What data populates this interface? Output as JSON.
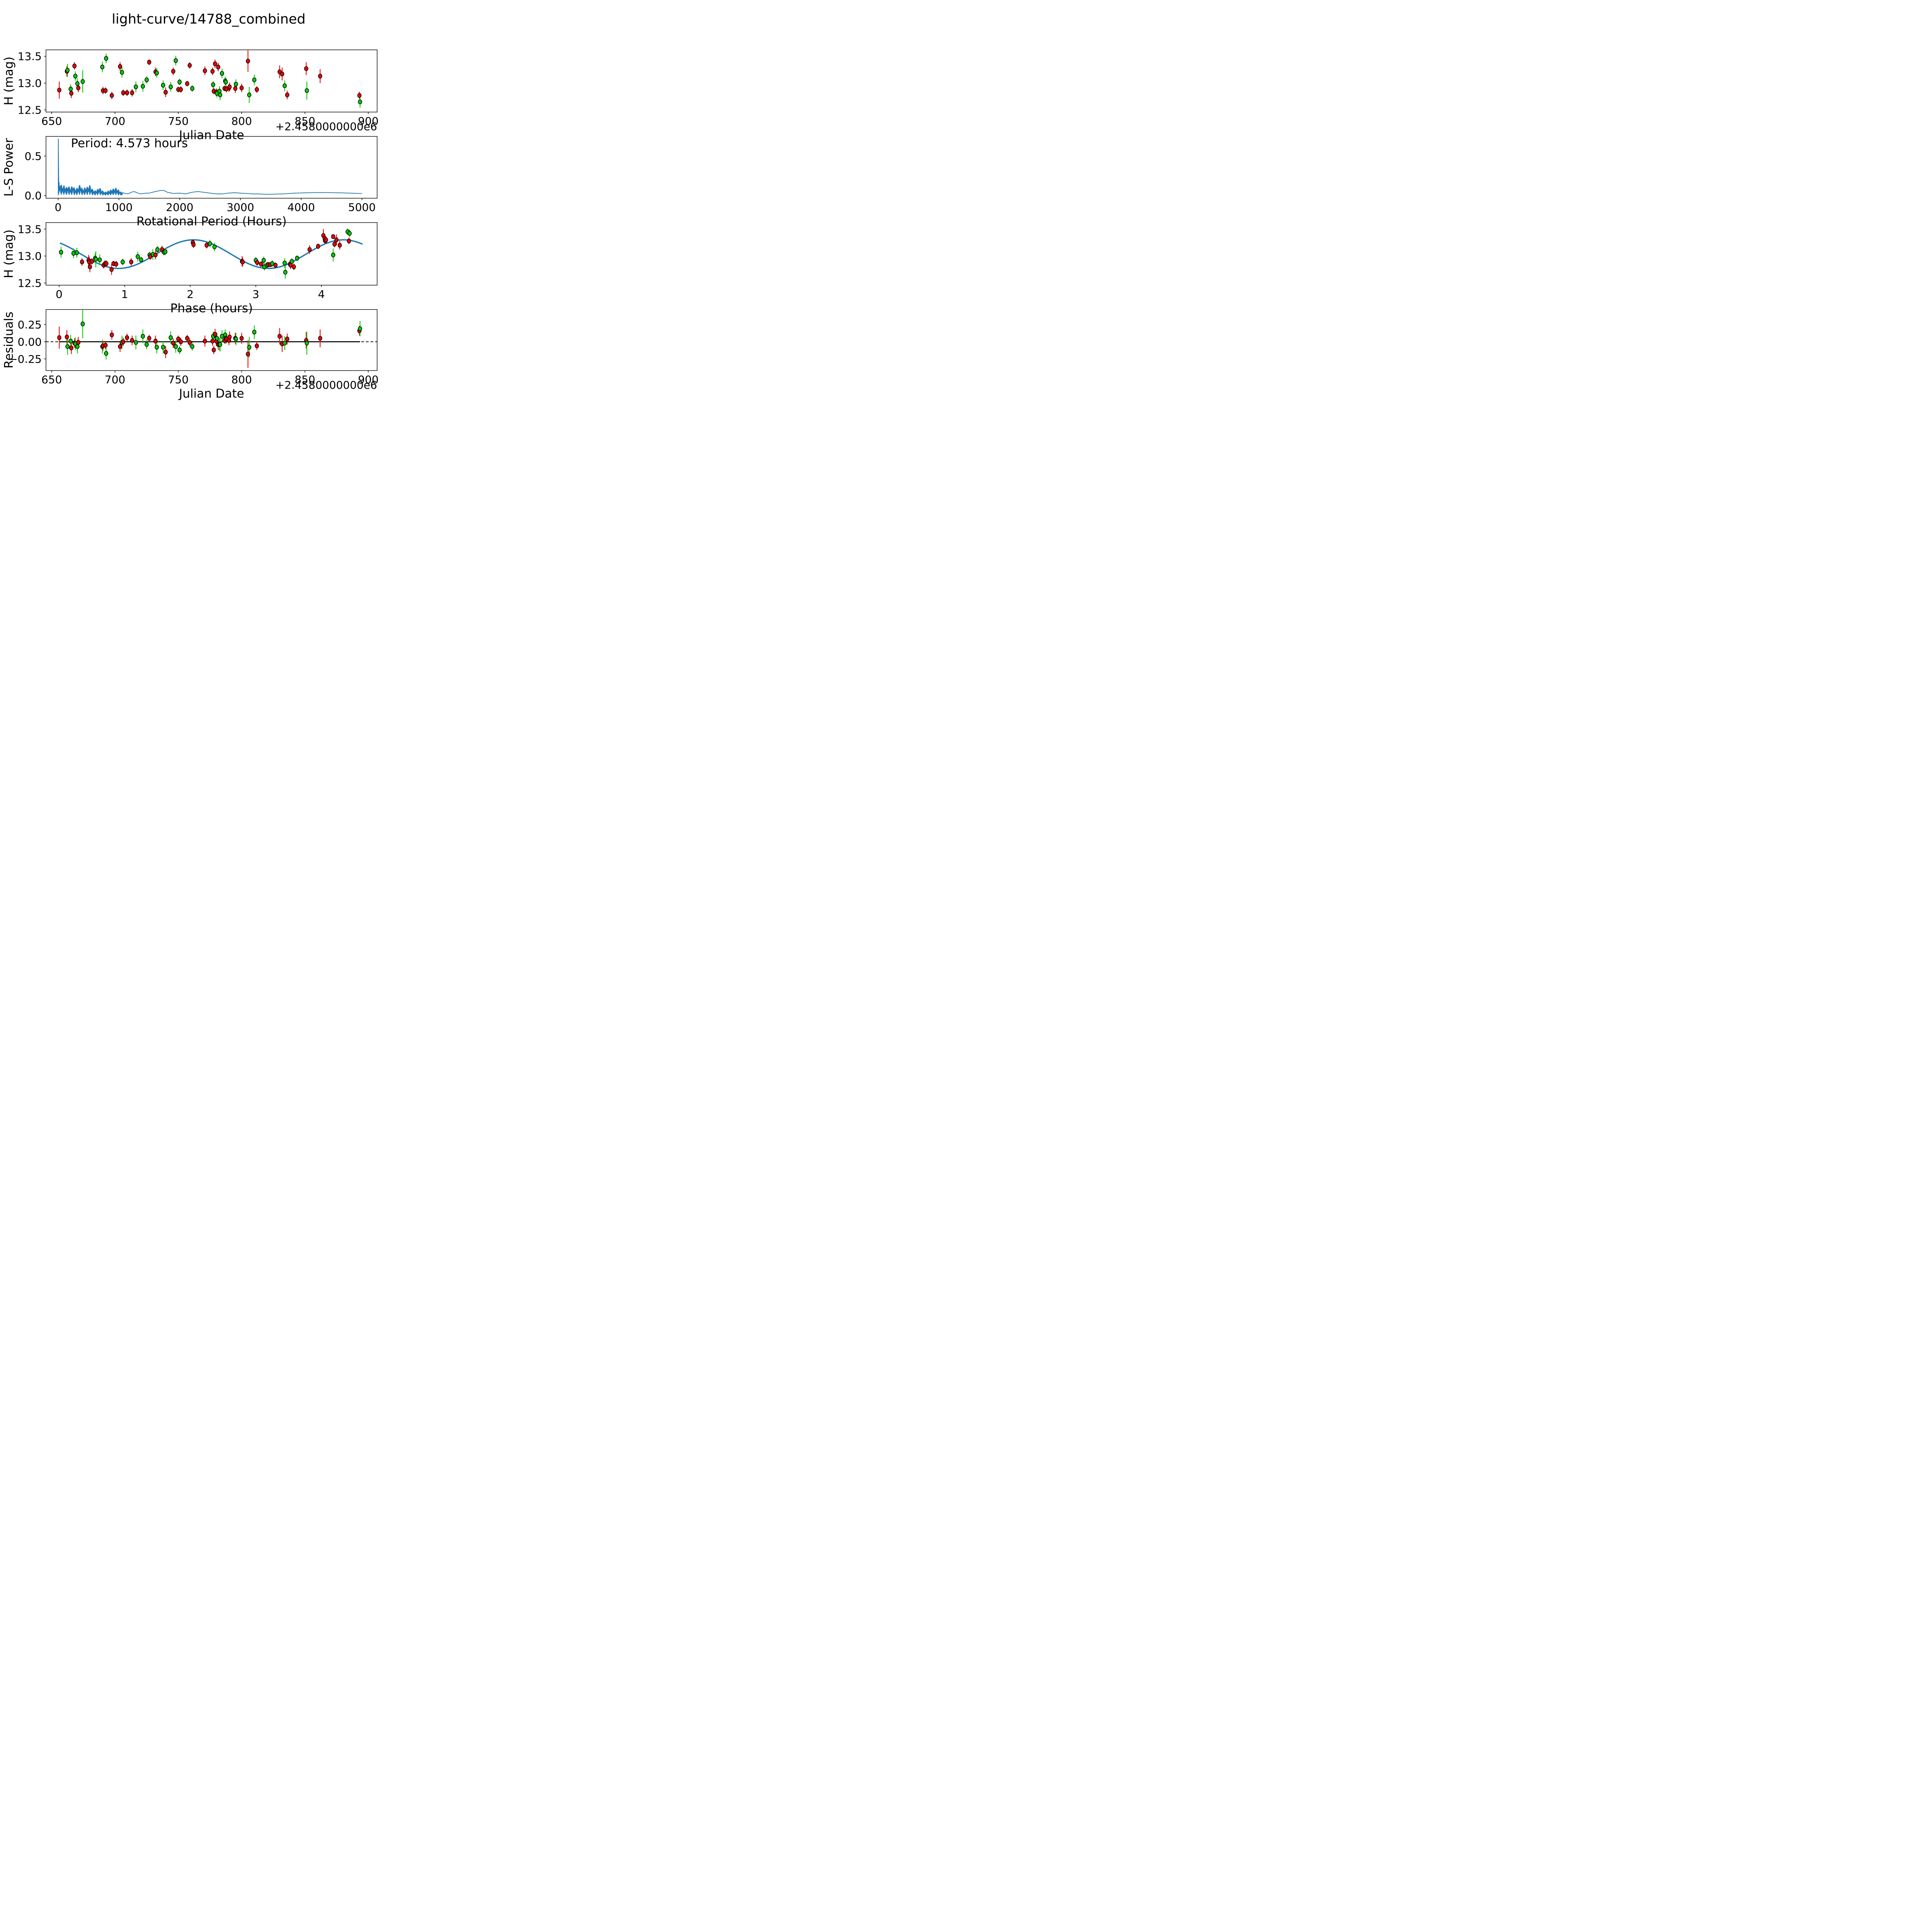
{
  "title": "light-curve/14788_combined",
  "colors": {
    "red": "#ee0000",
    "green": "#00cc00",
    "blue": "#1f77b4",
    "black": "#000000",
    "background": "#ffffff"
  },
  "chart_data": [
    {
      "type": "scatter",
      "name": "light-curve-vs-jd",
      "xlabel": "Julian Date",
      "ylabel": "H (mag)",
      "x_offset_text": "+2.4580000000e6",
      "xlim": [
        645.5,
        907
      ],
      "ylim": [
        12.46,
        13.62
      ],
      "xticks": [
        650,
        700,
        750,
        800,
        850,
        900
      ],
      "xtick_labels": [
        "650",
        "700",
        "750",
        "800",
        "850",
        "900"
      ],
      "yticks": [
        13.5,
        13.0,
        12.5
      ],
      "ytick_labels": [
        "13.5",
        "13.0",
        "12.5"
      ],
      "points_jd_mag_err_color_resid": [
        [
          656,
          12.87,
          0.16,
          "r",
          0.06
        ],
        [
          662,
          13.22,
          0.1,
          "r",
          0.07
        ],
        [
          662.5,
          13.24,
          0.12,
          "g",
          -0.07
        ],
        [
          665,
          12.89,
          0.09,
          "g",
          0.01
        ],
        [
          665.5,
          12.81,
          0.09,
          "r",
          -0.09
        ],
        [
          668,
          13.32,
          0.07,
          "r",
          -0.02
        ],
        [
          668.7,
          13.13,
          0.09,
          "g",
          -0.03
        ],
        [
          670.3,
          12.99,
          0.1,
          "g",
          -0.07
        ],
        [
          671,
          12.91,
          0.08,
          "r",
          -0.01
        ],
        [
          674.5,
          13.03,
          0.21,
          "g",
          0.26
        ],
        [
          690,
          13.3,
          0.1,
          "g",
          -0.07
        ],
        [
          690.5,
          12.86,
          0.07,
          "r",
          -0.06
        ],
        [
          692.5,
          12.86,
          0.06,
          "r",
          -0.05
        ],
        [
          693,
          13.46,
          0.09,
          "g",
          -0.17
        ],
        [
          697.5,
          12.77,
          0.07,
          "r",
          0.1
        ],
        [
          704,
          13.31,
          0.08,
          "r",
          -0.07
        ],
        [
          705.5,
          13.2,
          0.1,
          "g",
          -0.01
        ],
        [
          706.5,
          12.82,
          0.06,
          "r",
          0.0
        ],
        [
          709.5,
          12.82,
          0.06,
          "r",
          0.06
        ],
        [
          713.5,
          12.82,
          0.07,
          "r",
          0.02
        ],
        [
          716.5,
          12.93,
          0.1,
          "g",
          -0.01
        ],
        [
          722,
          12.94,
          0.1,
          "g",
          0.08
        ],
        [
          725,
          13.06,
          0.07,
          "g",
          -0.04
        ],
        [
          727,
          13.39,
          0.05,
          "r",
          0.05
        ],
        [
          732,
          13.21,
          0.08,
          "r",
          0.01
        ],
        [
          733,
          13.19,
          0.09,
          "g",
          -0.08
        ],
        [
          738,
          12.96,
          0.09,
          "g",
          -0.08
        ],
        [
          740,
          12.83,
          0.09,
          "r",
          -0.15
        ],
        [
          744,
          12.93,
          0.09,
          "g",
          0.06
        ],
        [
          746,
          13.22,
          0.07,
          "r",
          -0.02
        ],
        [
          748,
          13.42,
          0.09,
          "g",
          -0.07
        ],
        [
          750,
          12.88,
          0.05,
          "r",
          0.04
        ],
        [
          751,
          13.02,
          0.06,
          "g",
          -0.12
        ],
        [
          752,
          12.88,
          0.06,
          "r",
          0.0
        ],
        [
          757,
          12.99,
          0.05,
          "r",
          0.05
        ],
        [
          759,
          13.33,
          0.06,
          "r",
          -0.01
        ],
        [
          761,
          12.9,
          0.06,
          "g",
          -0.07
        ],
        [
          771,
          13.23,
          0.08,
          "r",
          0.01
        ],
        [
          777,
          13.22,
          0.07,
          "r",
          0.01
        ],
        [
          777.5,
          12.97,
          0.07,
          "g",
          0.08
        ],
        [
          778,
          12.85,
          0.06,
          "r",
          -0.12
        ],
        [
          779,
          13.36,
          0.08,
          "r",
          0.11
        ],
        [
          780,
          12.83,
          0.07,
          "r",
          0.01
        ],
        [
          780.5,
          12.81,
          0.08,
          "g",
          0.05
        ],
        [
          781.5,
          13.3,
          0.08,
          "r",
          -0.04
        ],
        [
          782.5,
          12.85,
          0.09,
          "g",
          -0.04
        ],
        [
          783,
          12.78,
          0.1,
          "g",
          -0.04
        ],
        [
          784.5,
          13.18,
          0.09,
          "g",
          0.08
        ],
        [
          786.5,
          12.9,
          0.05,
          "r",
          0.02
        ],
        [
          787,
          13.04,
          0.08,
          "g",
          0.1
        ],
        [
          787.5,
          13.02,
          0.08,
          "g",
          0.05
        ],
        [
          788,
          12.89,
          0.06,
          "r",
          0.04
        ],
        [
          790,
          12.91,
          0.07,
          "r",
          0.02
        ],
        [
          790.5,
          12.93,
          0.08,
          "r",
          0.07
        ],
        [
          795,
          12.9,
          0.08,
          "r",
          0.05
        ],
        [
          795.5,
          12.98,
          0.09,
          "g",
          0.04
        ],
        [
          800,
          12.91,
          0.08,
          "r",
          0.05
        ],
        [
          805,
          13.41,
          0.2,
          "r",
          -0.18
        ],
        [
          806,
          12.78,
          0.15,
          "g",
          -0.08
        ],
        [
          810,
          13.06,
          0.1,
          "g",
          0.14
        ],
        [
          812,
          12.88,
          0.06,
          "r",
          -0.06
        ],
        [
          830,
          13.21,
          0.12,
          "r",
          0.08
        ],
        [
          832,
          13.17,
          0.12,
          "r",
          -0.03
        ],
        [
          834,
          12.95,
          0.1,
          "g",
          -0.02
        ],
        [
          836,
          12.78,
          0.08,
          "r",
          0.04
        ],
        [
          851,
          13.27,
          0.12,
          "r",
          0.02
        ],
        [
          851.5,
          12.86,
          0.17,
          "g",
          -0.02
        ],
        [
          862,
          13.13,
          0.13,
          "r",
          0.05
        ],
        [
          893,
          12.77,
          0.07,
          "r",
          0.16
        ],
        [
          893.5,
          12.65,
          0.11,
          "g",
          0.19
        ]
      ]
    },
    {
      "type": "line",
      "name": "lomb-scargle-periodogram",
      "xlabel": "Rotational Period (Hours)",
      "ylabel": "L-S Power",
      "annotation": "Period: 4.573 hours",
      "best_period_hours": 4.573,
      "peak_power": 0.72,
      "xlim": [
        -200,
        5250
      ],
      "ylim": [
        -0.035,
        0.75
      ],
      "xticks": [
        0,
        1000,
        2000,
        3000,
        4000,
        5000
      ],
      "xtick_labels": [
        "0",
        "1000",
        "2000",
        "3000",
        "4000",
        "5000"
      ],
      "yticks": [
        0.5,
        0.0
      ],
      "ytick_labels": [
        "0.5",
        "0.0"
      ],
      "noise_region_end_hours": 1060,
      "envelope_period_power": [
        [
          3,
          0.72
        ],
        [
          8,
          0.28
        ],
        [
          15,
          0.22
        ],
        [
          25,
          0.2
        ],
        [
          40,
          0.17
        ],
        [
          60,
          0.16
        ],
        [
          80,
          0.14
        ],
        [
          100,
          0.16
        ],
        [
          130,
          0.12
        ],
        [
          160,
          0.15
        ],
        [
          200,
          0.12
        ],
        [
          240,
          0.15
        ],
        [
          280,
          0.1
        ],
        [
          320,
          0.12
        ],
        [
          360,
          0.17
        ],
        [
          400,
          0.1
        ],
        [
          440,
          0.12
        ],
        [
          480,
          0.13
        ],
        [
          520,
          0.16
        ],
        [
          560,
          0.1
        ],
        [
          600,
          0.07
        ],
        [
          640,
          0.09
        ],
        [
          680,
          0.12
        ],
        [
          720,
          0.08
        ],
        [
          760,
          0.05
        ],
        [
          800,
          0.06
        ],
        [
          850,
          0.08
        ],
        [
          900,
          0.1
        ],
        [
          950,
          0.115
        ],
        [
          1000,
          0.08
        ],
        [
          1050,
          0.04
        ],
        [
          1100,
          0.025
        ],
        [
          1150,
          0.02
        ],
        [
          1200,
          0.04
        ],
        [
          1250,
          0.05
        ],
        [
          1300,
          0.035
        ],
        [
          1350,
          0.02
        ],
        [
          1400,
          0.025
        ],
        [
          1450,
          0.03
        ],
        [
          1500,
          0.03
        ],
        [
          1600,
          0.05
        ],
        [
          1700,
          0.065
        ],
        [
          1750,
          0.06
        ],
        [
          1800,
          0.04
        ],
        [
          1900,
          0.025
        ],
        [
          2000,
          0.03
        ],
        [
          2100,
          0.02
        ],
        [
          2200,
          0.04
        ],
        [
          2300,
          0.05
        ],
        [
          2400,
          0.04
        ],
        [
          2500,
          0.03
        ],
        [
          2600,
          0.02
        ],
        [
          2700,
          0.02
        ],
        [
          2800,
          0.03
        ],
        [
          2900,
          0.035
        ],
        [
          3000,
          0.03
        ],
        [
          3100,
          0.025
        ],
        [
          3200,
          0.02
        ],
        [
          3300,
          0.02
        ],
        [
          3400,
          0.015
        ],
        [
          3500,
          0.015
        ],
        [
          3600,
          0.018
        ],
        [
          3700,
          0.02
        ],
        [
          3800,
          0.025
        ],
        [
          3900,
          0.03
        ],
        [
          4000,
          0.032
        ],
        [
          4100,
          0.035
        ],
        [
          4200,
          0.036
        ],
        [
          4300,
          0.037
        ],
        [
          4400,
          0.037
        ],
        [
          4500,
          0.036
        ],
        [
          4600,
          0.034
        ],
        [
          4700,
          0.032
        ],
        [
          4800,
          0.03
        ],
        [
          4900,
          0.027
        ],
        [
          5000,
          0.025
        ]
      ]
    },
    {
      "type": "scatter",
      "name": "phase-folded-light-curve",
      "xlabel": "Phase (hours)",
      "ylabel": "H (mag)",
      "xlim": [
        -0.2,
        4.85
      ],
      "ylim": [
        12.46,
        13.62
      ],
      "xticks": [
        0,
        1,
        2,
        3,
        4
      ],
      "xtick_labels": [
        "0",
        "1",
        "2",
        "3",
        "4"
      ],
      "yticks": [
        13.5,
        13.0,
        12.5
      ],
      "ytick_labels": [
        "13.5",
        "13.0",
        "12.5"
      ],
      "fit_curve": {
        "mean_mag": 13.035,
        "amplitude": 0.265,
        "rotation_period_hours": 4.573,
        "half_period_hours": 2.2865,
        "phase_of_max_hours": 2.05,
        "x_start": 0.02,
        "x_end": 4.62
      },
      "points_phase_mag_err_color": [
        [
          0.03,
          13.07,
          0.1,
          "g"
        ],
        [
          0.22,
          13.05,
          0.09,
          "g"
        ],
        [
          0.27,
          13.06,
          0.09,
          "g"
        ],
        [
          0.35,
          12.89,
          0.07,
          "r"
        ],
        [
          0.45,
          12.92,
          0.1,
          "r"
        ],
        [
          0.46,
          12.89,
          0.1,
          "r"
        ],
        [
          0.47,
          12.8,
          0.1,
          "r"
        ],
        [
          0.5,
          12.9,
          0.06,
          "r"
        ],
        [
          0.55,
          12.96,
          0.09,
          "g"
        ],
        [
          0.56,
          12.94,
          0.15,
          "g"
        ],
        [
          0.62,
          12.93,
          0.1,
          "g"
        ],
        [
          0.68,
          12.83,
          0.06,
          "r"
        ],
        [
          0.7,
          12.86,
          0.06,
          "r"
        ],
        [
          0.72,
          12.86,
          0.06,
          "r"
        ],
        [
          0.8,
          12.75,
          0.1,
          "r"
        ],
        [
          0.83,
          12.86,
          0.05,
          "r"
        ],
        [
          0.87,
          12.85,
          0.06,
          "r"
        ],
        [
          0.97,
          12.89,
          0.06,
          "g"
        ],
        [
          1.1,
          12.89,
          0.07,
          "r"
        ],
        [
          1.2,
          12.99,
          0.09,
          "g"
        ],
        [
          1.25,
          12.93,
          0.06,
          "g"
        ],
        [
          1.38,
          13.02,
          0.06,
          "g"
        ],
        [
          1.39,
          12.99,
          0.06,
          "r"
        ],
        [
          1.43,
          13.03,
          0.1,
          "g"
        ],
        [
          1.47,
          13.02,
          0.08,
          "r"
        ],
        [
          1.5,
          13.12,
          0.07,
          "g"
        ],
        [
          1.57,
          13.12,
          0.07,
          "r"
        ],
        [
          1.6,
          13.07,
          0.06,
          "g"
        ],
        [
          1.62,
          13.08,
          0.06,
          "g"
        ],
        [
          2.04,
          13.25,
          0.05,
          "r"
        ],
        [
          2.05,
          13.21,
          0.06,
          "r"
        ],
        [
          2.25,
          13.2,
          0.06,
          "r"
        ],
        [
          2.3,
          13.23,
          0.07,
          "g"
        ],
        [
          2.37,
          13.17,
          0.08,
          "g"
        ],
        [
          2.79,
          12.9,
          0.1,
          "r"
        ],
        [
          2.8,
          12.89,
          0.08,
          "r"
        ],
        [
          3.0,
          12.92,
          0.06,
          "g"
        ],
        [
          3.02,
          12.88,
          0.06,
          "r"
        ],
        [
          3.08,
          12.85,
          0.05,
          "r"
        ],
        [
          3.12,
          12.92,
          0.07,
          "g"
        ],
        [
          3.13,
          12.8,
          0.07,
          "g"
        ],
        [
          3.17,
          12.83,
          0.06,
          "g"
        ],
        [
          3.19,
          12.84,
          0.05,
          "r"
        ],
        [
          3.22,
          12.84,
          0.04,
          "r"
        ],
        [
          3.25,
          12.86,
          0.06,
          "g"
        ],
        [
          3.3,
          12.83,
          0.05,
          "r"
        ],
        [
          3.44,
          12.87,
          0.09,
          "g"
        ],
        [
          3.45,
          12.7,
          0.12,
          "g"
        ],
        [
          3.52,
          12.85,
          0.05,
          "r"
        ],
        [
          3.53,
          12.83,
          0.07,
          "r"
        ],
        [
          3.55,
          12.9,
          0.06,
          "g"
        ],
        [
          3.58,
          12.8,
          0.06,
          "r"
        ],
        [
          3.63,
          12.96,
          0.05,
          "g"
        ],
        [
          3.82,
          13.12,
          0.08,
          "r"
        ],
        [
          3.95,
          13.18,
          0.05,
          "r"
        ],
        [
          4.03,
          13.38,
          0.12,
          "r"
        ],
        [
          4.05,
          13.33,
          0.05,
          "r"
        ],
        [
          4.06,
          13.28,
          0.05,
          "r"
        ],
        [
          4.07,
          13.3,
          0.05,
          "r"
        ],
        [
          4.18,
          13.36,
          0.04,
          "r"
        ],
        [
          4.18,
          13.02,
          0.12,
          "g"
        ],
        [
          4.2,
          13.22,
          0.06,
          "r"
        ],
        [
          4.23,
          13.3,
          0.1,
          "r"
        ],
        [
          4.28,
          13.2,
          0.08,
          "r"
        ],
        [
          4.4,
          13.45,
          0.06,
          "g"
        ],
        [
          4.43,
          13.42,
          0.07,
          "g"
        ],
        [
          4.42,
          13.28,
          0.06,
          "r"
        ]
      ]
    },
    {
      "type": "scatter",
      "name": "residuals-vs-jd",
      "xlabel": "Julian Date",
      "ylabel": "Residuals",
      "x_offset_text": "+2.4580000000e6",
      "xlim": [
        645.5,
        907
      ],
      "ylim": [
        -0.42,
        0.47
      ],
      "xticks": [
        650,
        700,
        750,
        800,
        850,
        900
      ],
      "xtick_labels": [
        "650",
        "700",
        "750",
        "800",
        "850",
        "900"
      ],
      "yticks": [
        0.25,
        0.0,
        -0.25
      ],
      "ytick_labels": [
        "0.25",
        "0.00",
        "−0.25"
      ],
      "zero_line": {
        "solid_x_start": 656,
        "solid_x_end": 893.5,
        "value": 0.0
      }
    }
  ]
}
